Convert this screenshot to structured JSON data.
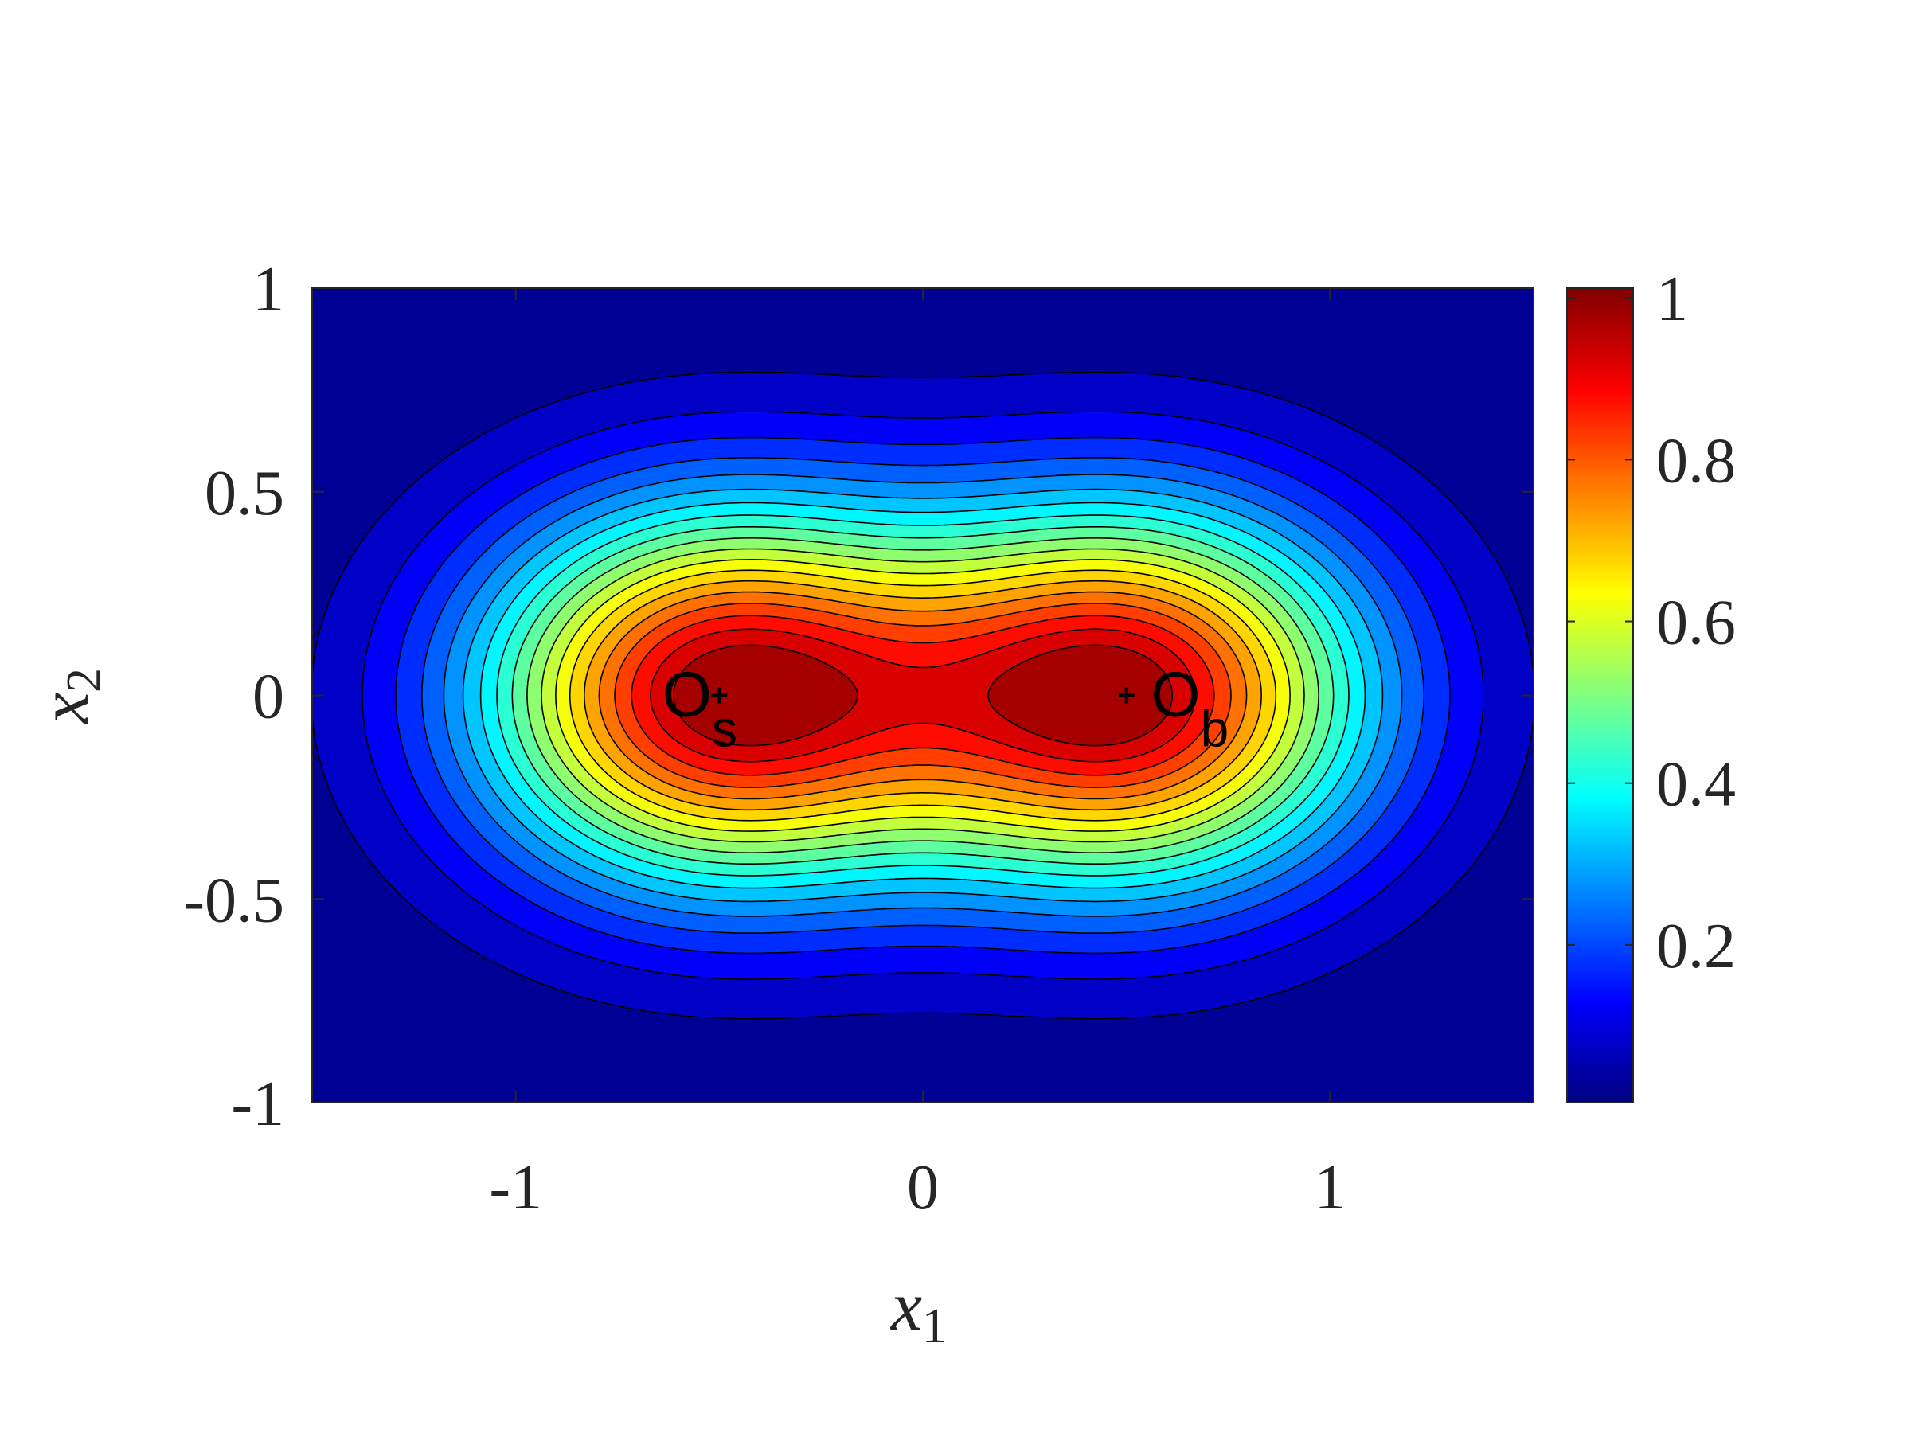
{
  "chart_data": {
    "type": "contour",
    "colormap": "jet",
    "xlabel": {
      "text": "x",
      "subscript": "1"
    },
    "ylabel": {
      "text": "x",
      "subscript": "2"
    },
    "xlim": [
      -1.5,
      1.5
    ],
    "ylim": [
      -1,
      1
    ],
    "xticks": [
      -1,
      0,
      1
    ],
    "yticks": [
      -1,
      -0.5,
      0,
      0.5,
      1
    ],
    "clim": [
      0.005,
      1.012
    ],
    "cticks": [
      0.2,
      0.4,
      0.6,
      0.8,
      1
    ],
    "levels": [
      0.05,
      0.1,
      0.15,
      0.2,
      0.25,
      0.3,
      0.35,
      0.4,
      0.45,
      0.5,
      0.55,
      0.6,
      0.65,
      0.7,
      0.75,
      0.8,
      0.85,
      0.9,
      0.95
    ],
    "markers": {
      "x": [
        -0.5,
        0.5
      ],
      "y": [
        0,
        0
      ]
    },
    "annotations": [
      {
        "text": "O",
        "subscript": "s",
        "x": -0.64,
        "y": 0
      },
      {
        "text": "O",
        "subscript": "b",
        "x": 0.56,
        "y": 0
      }
    ]
  }
}
